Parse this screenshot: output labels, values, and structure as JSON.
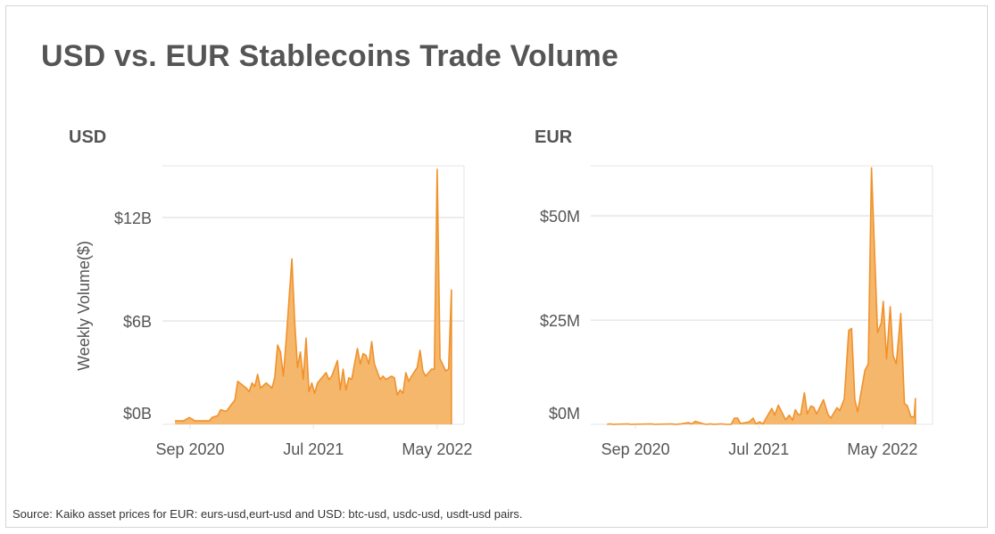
{
  "title": "USD vs. EUR Stablecoins Trade Volume",
  "footer": "Source: Kaiko asset prices for EUR: eurs-usd,eurt-usd and USD: btc-usd, usdc-usd, usdt-usd pairs.",
  "colors": {
    "fill": "#f5b76c",
    "line": "#f0922b",
    "grid": "#e6e6e6",
    "text": "#555555"
  },
  "chart_data": [
    {
      "type": "area",
      "title": "USD",
      "ylabel": "Weekly Volume($)",
      "xlabel": "",
      "xlim": [
        "2020-06-25",
        "2022-07-06"
      ],
      "ylim": [
        0,
        15
      ],
      "yticks": [
        0,
        6,
        12
      ],
      "ytick_labels": [
        "$0B",
        "$6B",
        "$12B"
      ],
      "xticks": [
        "2020-09-01",
        "2021-07-01",
        "2022-05-01"
      ],
      "xtick_labels": [
        "Sep 2020",
        "Jul 2021",
        "May 2022"
      ],
      "grid": true,
      "unit": "billions USD",
      "x": [
        "2020-07-26",
        "2020-08-16",
        "2020-08-30",
        "2020-09-13",
        "2020-10-18",
        "2020-10-25",
        "2020-11-08",
        "2020-11-15",
        "2020-11-29",
        "2020-12-13",
        "2020-12-20",
        "2020-12-27",
        "2021-01-17",
        "2021-01-24",
        "2021-01-31",
        "2021-02-07",
        "2021-02-14",
        "2021-02-21",
        "2021-03-07",
        "2021-03-21",
        "2021-03-28",
        "2021-04-04",
        "2021-04-11",
        "2021-04-18",
        "2021-04-25",
        "2021-05-09",
        "2021-05-16",
        "2021-05-23",
        "2021-05-30",
        "2021-06-06",
        "2021-06-13",
        "2021-06-20",
        "2021-06-27",
        "2021-07-04",
        "2021-07-11",
        "2021-08-01",
        "2021-08-08",
        "2021-08-15",
        "2021-08-29",
        "2021-09-05",
        "2021-09-12",
        "2021-09-19",
        "2021-09-26",
        "2021-10-03",
        "2021-10-17",
        "2021-10-24",
        "2021-10-31",
        "2021-11-07",
        "2021-11-14",
        "2021-11-21",
        "2021-11-28",
        "2021-12-12",
        "2021-12-19",
        "2021-12-26",
        "2022-01-09",
        "2022-01-16",
        "2022-01-23",
        "2022-01-30",
        "2022-02-06",
        "2022-02-13",
        "2022-02-20",
        "2022-02-27",
        "2022-03-13",
        "2022-03-20",
        "2022-03-27",
        "2022-04-03",
        "2022-04-17",
        "2022-04-24",
        "2022-05-01",
        "2022-05-08",
        "2022-05-22",
        "2022-05-29",
        "2022-06-05"
      ],
      "values": [
        0.2,
        0.2,
        0.4,
        0.2,
        0.2,
        0.4,
        0.5,
        0.85,
        0.75,
        1.2,
        1.4,
        2.5,
        2.1,
        1.9,
        2.4,
        2.2,
        2.9,
        2.1,
        2.4,
        2.1,
        2.7,
        4.6,
        4.2,
        2.8,
        4.9,
        9.6,
        6.0,
        3.3,
        4.2,
        2.6,
        5.0,
        1.9,
        2.4,
        1.8,
        2.4,
        3.0,
        2.6,
        2.8,
        3.7,
        2.0,
        3.2,
        2.0,
        2.7,
        2.6,
        4.4,
        3.5,
        4.1,
        4.0,
        3.5,
        4.8,
        3.5,
        2.6,
        2.8,
        2.6,
        2.8,
        2.7,
        1.7,
        2.0,
        1.8,
        3.0,
        2.5,
        2.8,
        3.3,
        4.3,
        3.1,
        2.8,
        3.2,
        3.2,
        14.8,
        3.8,
        3.1,
        3.2,
        7.8
      ]
    },
    {
      "type": "area",
      "title": "EUR",
      "xlabel": "",
      "ylabel": "",
      "xlim": [
        "2020-05-14",
        "2022-09-01"
      ],
      "ylim": [
        0,
        62
      ],
      "yticks": [
        0,
        25,
        50
      ],
      "ytick_labels": [
        "$0M",
        "$25M",
        "$50M"
      ],
      "xticks": [
        "2020-09-01",
        "2021-07-01",
        "2022-05-01"
      ],
      "xtick_labels": [
        "Sep 2020",
        "Jul 2021",
        "May 2022"
      ],
      "grid": true,
      "unit": "millions USD",
      "x": [
        "2020-06-23",
        "2020-06-30",
        "2020-07-08",
        "2020-08-13",
        "2020-08-20",
        "2020-10-10",
        "2020-10-18",
        "2020-11-30",
        "2020-12-08",
        "2020-12-22",
        "2021-01-09",
        "2021-01-17",
        "2021-01-26",
        "2021-02-15",
        "2021-02-22",
        "2021-03-05",
        "2021-03-12",
        "2021-03-31",
        "2021-04-11",
        "2021-04-24",
        "2021-05-02",
        "2021-05-10",
        "2021-05-17",
        "2021-05-28",
        "2021-06-08",
        "2021-06-17",
        "2021-06-24",
        "2021-07-03",
        "2021-07-11",
        "2021-07-22",
        "2021-08-02",
        "2021-08-09",
        "2021-08-18",
        "2021-09-05",
        "2021-09-14",
        "2021-09-22",
        "2021-09-29",
        "2021-10-06",
        "2021-10-12",
        "2021-10-21",
        "2021-10-28",
        "2021-11-06",
        "2021-11-13",
        "2021-11-20",
        "2021-12-07",
        "2021-12-18",
        "2021-12-25",
        "2022-01-09",
        "2022-01-16",
        "2022-01-27",
        "2022-02-07",
        "2022-02-14",
        "2022-02-22",
        "2022-03-01",
        "2022-03-19",
        "2022-03-27",
        "2022-04-04",
        "2022-04-19",
        "2022-04-28",
        "2022-05-03",
        "2022-05-11",
        "2022-05-20",
        "2022-05-27",
        "2022-06-04",
        "2022-06-15",
        "2022-06-24",
        "2022-07-01",
        "2022-07-10",
        "2022-07-18",
        "2022-07-21"
      ],
      "values": [
        0,
        0.1,
        0,
        0.1,
        0,
        0.1,
        0,
        0.1,
        0,
        0.1,
        0.4,
        0.1,
        0.7,
        0.1,
        0,
        0.1,
        0,
        0.1,
        0,
        0,
        1.5,
        1.5,
        0.2,
        0.4,
        0.6,
        1.5,
        0.1,
        0.6,
        0.1,
        2.0,
        3.8,
        2.2,
        4.6,
        1.1,
        2.2,
        1.0,
        3.5,
        2.3,
        2.4,
        7.6,
        2.5,
        4.4,
        4.1,
        2.5,
        5.9,
        2.4,
        1.5,
        4.0,
        3.3,
        6.1,
        22.5,
        23.0,
        6.0,
        3.0,
        13.0,
        14.5,
        61.5,
        22.0,
        24.3,
        29.5,
        15.7,
        28.2,
        16.5,
        14.5,
        26.6,
        5.0,
        4.5,
        1.8,
        1.8,
        6.2
      ]
    }
  ]
}
